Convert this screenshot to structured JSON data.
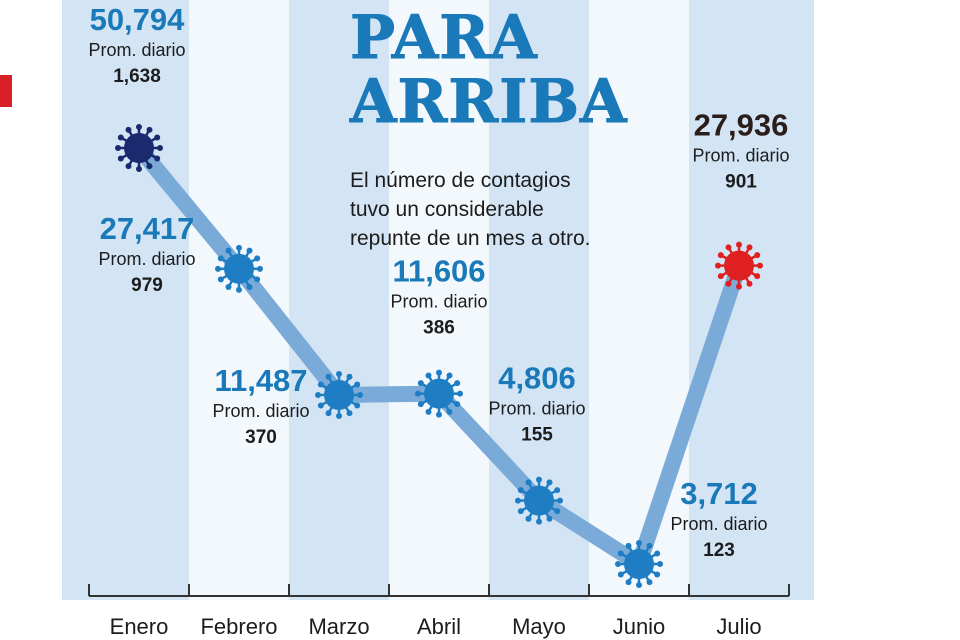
{
  "title_lines": [
    "PARA",
    "ARRIBA"
  ],
  "subtitle": "El número de contagios tuvo un considerable repunte de un mes a otro.",
  "colors": {
    "title": "#1a79b8",
    "series_label": "#1a79b8",
    "highlight_label": "#2b1e1a",
    "line": "#7aabd8",
    "virus_default": "#1f7dc4",
    "virus_first": "#1a2a6e",
    "virus_last": "#e02020",
    "band_light": "#d3e4f4",
    "band_white": "#f3f8fd",
    "axis": "#333333",
    "left_marker": "#d81f26"
  },
  "chart_data": {
    "type": "line",
    "title": "PARA ARRIBA",
    "categories": [
      "Enero",
      "Febrero",
      "Marzo",
      "Abril",
      "Mayo",
      "Junio",
      "Julio"
    ],
    "series": [
      {
        "values": [
          50794,
          27417,
          11487,
          11606,
          4806,
          3712,
          27936
        ]
      }
    ],
    "daily_average_label": "Prom. diario",
    "daily_average": [
      1638,
      979,
      370,
      386,
      155,
      123,
      901
    ],
    "total_labels": [
      "50,794",
      "27,417",
      "11,487",
      "11,606",
      "4,806",
      "3,712",
      "27,936"
    ],
    "daily_labels": [
      "1,638",
      "979",
      "370",
      "386",
      "155",
      "123",
      "901"
    ],
    "ylim": [
      0,
      55000
    ],
    "grid": false,
    "xlabel": "",
    "ylabel": ""
  }
}
